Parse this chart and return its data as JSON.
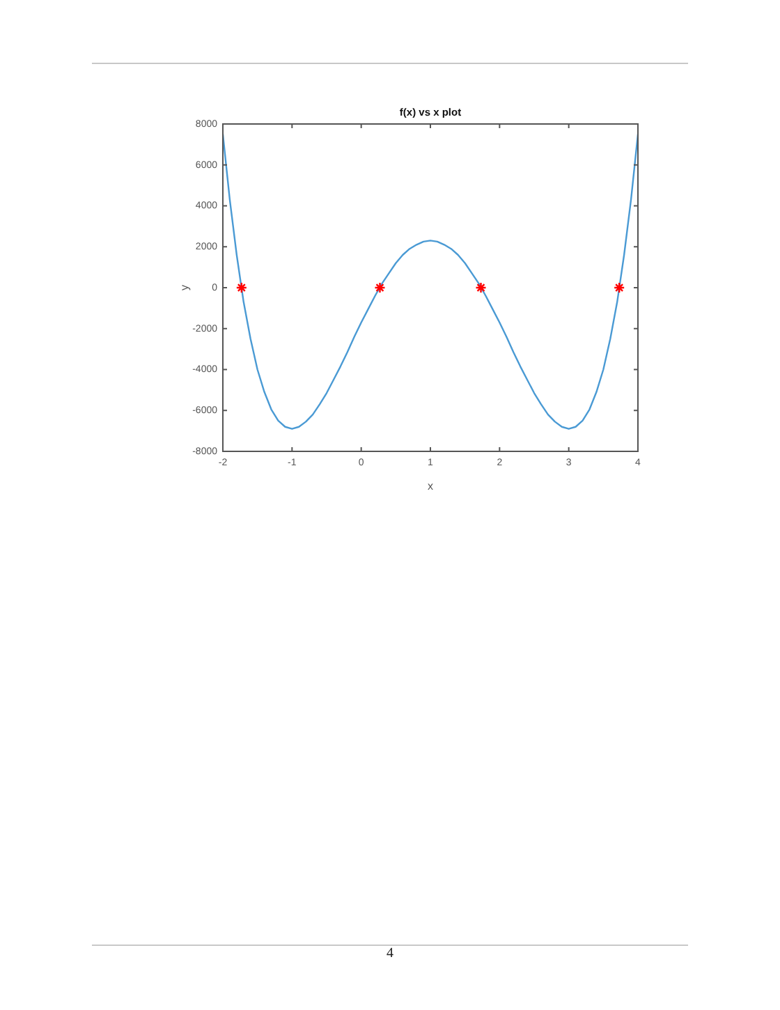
{
  "chart_data": {
    "type": "line",
    "title": "f(x) vs x plot",
    "xlabel": "x",
    "ylabel": "y",
    "xlim": [
      -2,
      4
    ],
    "xticks": [
      -2,
      -1,
      0,
      1,
      2,
      3,
      4
    ],
    "ylim": [
      -8000,
      8000
    ],
    "yticks": [
      -8000,
      -6000,
      -4000,
      -2000,
      0,
      2000,
      4000,
      6000,
      8000
    ],
    "series": [
      {
        "color": "#4a9ad4",
        "x": [
          -2,
          -1.9,
          -1.8,
          -1.7,
          -1.6,
          -1.5,
          -1.4,
          -1.3,
          -1.2,
          -1.1,
          -1,
          -0.9,
          -0.8,
          -0.7,
          -0.6,
          -0.5,
          -0.4,
          -0.3,
          -0.2,
          -0.1,
          0,
          0.1,
          0.2,
          0.3,
          0.4,
          0.5,
          0.6,
          0.7,
          0.8,
          0.9,
          1,
          1.1,
          1.2,
          1.3,
          1.4,
          1.5,
          1.6,
          1.7,
          1.8,
          1.9,
          2,
          2.1,
          2.2,
          2.3,
          2.4,
          2.5,
          2.6,
          2.7,
          2.8,
          2.9,
          3,
          3.1,
          3.2,
          3.3,
          3.4,
          3.5,
          3.6,
          3.7,
          3.8,
          3.9,
          4
        ],
        "values": [
          7500,
          4300,
          1600,
          -700,
          -2500,
          -4000,
          -5100,
          -5950,
          -6500,
          -6800,
          -6900,
          -6800,
          -6550,
          -6200,
          -5700,
          -5150,
          -4500,
          -3850,
          -3150,
          -2400,
          -1700,
          -1050,
          -400,
          200,
          700,
          1200,
          1600,
          1900,
          2100,
          2250,
          2300,
          2250,
          2100,
          1900,
          1600,
          1200,
          700,
          200,
          -400,
          -1050,
          -1700,
          -2400,
          -3150,
          -3850,
          -4500,
          -5150,
          -5700,
          -6200,
          -6550,
          -6800,
          -6900,
          -6800,
          -6500,
          -5950,
          -5100,
          -4000,
          -2500,
          -700,
          1600,
          4300,
          7500
        ]
      },
      {
        "type": "scatter",
        "color": "#ff0000",
        "marker": "cross",
        "x": [
          -1.73,
          0.27,
          1.73,
          3.73
        ],
        "values": [
          0,
          0,
          0,
          0
        ]
      }
    ],
    "annotations": [
      "4"
    ]
  }
}
